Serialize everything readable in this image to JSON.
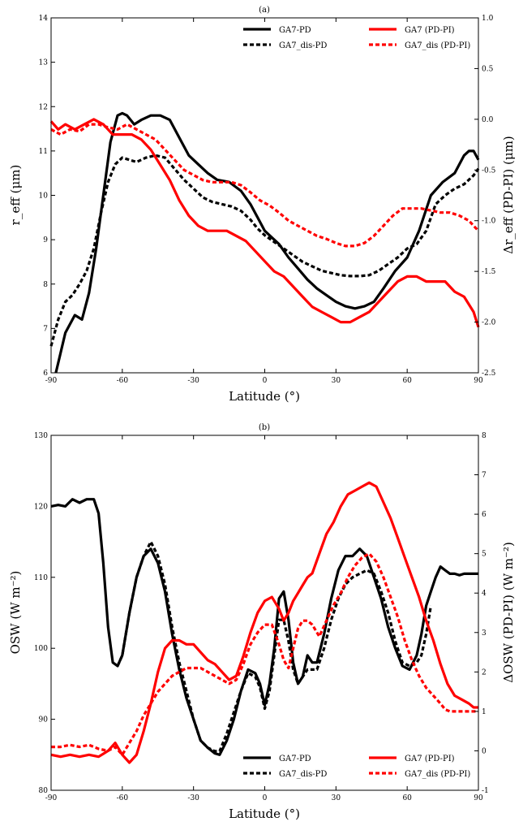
{
  "chart_data": [
    {
      "type": "line",
      "title": "(a)",
      "xlabel": "Latitude (°)",
      "ylabel_left": "r_eff (μm)",
      "ylabel_right": "Δr_eff (PD-PI) (μm)",
      "xlim": [
        -90,
        90
      ],
      "ylim_left": [
        6,
        14
      ],
      "ylim_right": [
        -2.5,
        1.0
      ],
      "x_ticks": [
        -90,
        -60,
        -30,
        0,
        30,
        60,
        90
      ],
      "y_ticks_left": [
        6,
        7,
        8,
        9,
        10,
        11,
        12,
        13,
        14
      ],
      "y_ticks_right": [
        -2.5,
        -2.0,
        -1.5,
        -1.0,
        -0.5,
        0.0,
        0.5,
        1.0
      ],
      "grid": false,
      "legend_placement": "top-right",
      "series": [
        {
          "name": "GA7-PD",
          "axis": "left",
          "color": "#000000",
          "style": "solid",
          "x": [
            -88,
            -84,
            -80,
            -77,
            -74,
            -71,
            -68,
            -65,
            -62,
            -60,
            -58,
            -55,
            -52,
            -48,
            -44,
            -40,
            -36,
            -32,
            -28,
            -24,
            -20,
            -15,
            -10,
            -6,
            -3,
            0,
            3,
            6,
            10,
            14,
            18,
            22,
            26,
            30,
            34,
            38,
            42,
            46,
            50,
            55,
            60,
            65,
            70,
            75,
            80,
            84,
            86,
            88,
            90
          ],
          "y": [
            6.0,
            6.9,
            7.3,
            7.2,
            7.8,
            8.8,
            10.0,
            11.2,
            11.8,
            11.85,
            11.8,
            11.6,
            11.7,
            11.8,
            11.8,
            11.7,
            11.3,
            10.9,
            10.7,
            10.5,
            10.35,
            10.3,
            10.1,
            9.8,
            9.5,
            9.2,
            9.05,
            8.9,
            8.6,
            8.35,
            8.1,
            7.9,
            7.75,
            7.6,
            7.5,
            7.45,
            7.5,
            7.6,
            7.9,
            8.3,
            8.6,
            9.2,
            10.0,
            10.3,
            10.5,
            10.9,
            11.0,
            11.0,
            10.8
          ]
        },
        {
          "name": "GA7_dis-PD",
          "axis": "left",
          "color": "#000000",
          "style": "dashed",
          "x": [
            -90,
            -87,
            -84,
            -81,
            -78,
            -75,
            -72,
            -69,
            -66,
            -63,
            -60,
            -57,
            -54,
            -50,
            -46,
            -42,
            -38,
            -34,
            -30,
            -26,
            -22,
            -18,
            -14,
            -10,
            -6,
            -3,
            0,
            4,
            8,
            12,
            16,
            20,
            24,
            28,
            32,
            36,
            40,
            44,
            48,
            52,
            56,
            60,
            64,
            68,
            72,
            76,
            80,
            84,
            88,
            90
          ],
          "y": [
            6.6,
            7.2,
            7.6,
            7.75,
            8.0,
            8.3,
            8.8,
            9.6,
            10.3,
            10.7,
            10.85,
            10.8,
            10.75,
            10.85,
            10.9,
            10.85,
            10.6,
            10.35,
            10.15,
            9.95,
            9.85,
            9.8,
            9.75,
            9.65,
            9.45,
            9.25,
            9.1,
            8.95,
            8.8,
            8.65,
            8.5,
            8.4,
            8.3,
            8.25,
            8.2,
            8.18,
            8.18,
            8.2,
            8.3,
            8.45,
            8.6,
            8.8,
            8.9,
            9.2,
            9.8,
            10.0,
            10.15,
            10.25,
            10.45,
            10.6
          ]
        },
        {
          "name": "GA7 (PD-PI)",
          "axis": "right",
          "color": "#ff0000",
          "style": "solid",
          "x": [
            -90,
            -87,
            -84,
            -80,
            -76,
            -72,
            -68,
            -64,
            -60,
            -56,
            -52,
            -48,
            -44,
            -40,
            -36,
            -32,
            -28,
            -24,
            -20,
            -16,
            -12,
            -8,
            -4,
            0,
            4,
            8,
            12,
            16,
            20,
            24,
            28,
            32,
            36,
            40,
            44,
            48,
            52,
            56,
            60,
            64,
            68,
            72,
            76,
            80,
            84,
            88,
            90
          ],
          "y": [
            -0.02,
            -0.1,
            -0.05,
            -0.1,
            -0.05,
            0.0,
            -0.05,
            -0.15,
            -0.15,
            -0.15,
            -0.2,
            -0.3,
            -0.45,
            -0.6,
            -0.8,
            -0.95,
            -1.05,
            -1.1,
            -1.1,
            -1.1,
            -1.15,
            -1.2,
            -1.3,
            -1.4,
            -1.5,
            -1.55,
            -1.65,
            -1.75,
            -1.85,
            -1.9,
            -1.95,
            -2.0,
            -2.0,
            -1.95,
            -1.9,
            -1.8,
            -1.7,
            -1.6,
            -1.55,
            -1.55,
            -1.6,
            -1.6,
            -1.6,
            -1.7,
            -1.75,
            -1.9,
            -2.05
          ]
        },
        {
          "name": "GA7_dis (PD-PI)",
          "axis": "right",
          "color": "#ff0000",
          "style": "dashed",
          "x": [
            -90,
            -86,
            -82,
            -78,
            -74,
            -70,
            -66,
            -62,
            -58,
            -54,
            -50,
            -46,
            -42,
            -38,
            -34,
            -30,
            -26,
            -22,
            -18,
            -14,
            -10,
            -6,
            -2,
            2,
            6,
            10,
            14,
            18,
            22,
            26,
            30,
            34,
            38,
            42,
            46,
            50,
            54,
            58,
            62,
            66,
            70,
            74,
            78,
            82,
            86,
            88,
            90
          ],
          "y": [
            -0.1,
            -0.15,
            -0.1,
            -0.12,
            -0.05,
            -0.05,
            -0.08,
            -0.1,
            -0.05,
            -0.1,
            -0.15,
            -0.2,
            -0.3,
            -0.4,
            -0.5,
            -0.55,
            -0.6,
            -0.62,
            -0.62,
            -0.62,
            -0.65,
            -0.72,
            -0.8,
            -0.85,
            -0.92,
            -1.0,
            -1.05,
            -1.1,
            -1.15,
            -1.18,
            -1.22,
            -1.25,
            -1.25,
            -1.22,
            -1.15,
            -1.05,
            -0.95,
            -0.88,
            -0.88,
            -0.88,
            -0.9,
            -0.92,
            -0.92,
            -0.95,
            -1.0,
            -1.05,
            -1.1
          ]
        }
      ]
    },
    {
      "type": "line",
      "title": "(b)",
      "xlabel": "Latitude (°)",
      "ylabel_left": "OSW (W m⁻²)",
      "ylabel_right": "ΔOSW (PD-PI) (W m⁻²)",
      "xlim": [
        -90,
        90
      ],
      "ylim_left": [
        80,
        130
      ],
      "ylim_right": [
        -1,
        8
      ],
      "x_ticks": [
        -90,
        -60,
        -30,
        0,
        30,
        60,
        90
      ],
      "y_ticks_left": [
        80,
        90,
        100,
        110,
        120,
        130
      ],
      "y_ticks_right": [
        -1,
        0,
        1,
        2,
        3,
        4,
        5,
        6,
        7,
        8
      ],
      "grid": false,
      "legend_placement": "bottom-right",
      "series": [
        {
          "name": "GA7-PD",
          "axis": "left",
          "color": "#000000",
          "style": "solid",
          "x": [
            -90,
            -87,
            -84,
            -81,
            -78,
            -75,
            -72,
            -70,
            -68,
            -66,
            -64,
            -62,
            -60,
            -57,
            -54,
            -51,
            -48,
            -45,
            -42,
            -39,
            -36,
            -33,
            -30,
            -27,
            -24,
            -21,
            -19,
            -16,
            -13,
            -10,
            -7,
            -4,
            -2,
            0,
            2,
            4,
            6,
            8,
            10,
            12,
            14,
            16,
            18,
            20,
            22,
            25,
            28,
            31,
            34,
            37,
            40,
            43,
            46,
            49,
            52,
            55,
            58,
            61,
            64,
            66,
            68,
            70,
            72,
            74,
            76,
            78,
            80,
            82,
            84,
            86,
            88,
            90
          ],
          "y": [
            120,
            120.2,
            120,
            121,
            120.5,
            121,
            121,
            119,
            112,
            103,
            98,
            97.5,
            99,
            105,
            110,
            113,
            114,
            112,
            108,
            102,
            97,
            93,
            90,
            87,
            86,
            85.2,
            85,
            87,
            90,
            94,
            97,
            96.5,
            95,
            92,
            95,
            100,
            107,
            108,
            104,
            98,
            95,
            96,
            99,
            98,
            98,
            102,
            107,
            111,
            113,
            113,
            114,
            113,
            110,
            107,
            103,
            100,
            97.5,
            97,
            99,
            102,
            106,
            108,
            110,
            111.5,
            111,
            110.5,
            110.5,
            110.3,
            110.5,
            110.5,
            110.5,
            110.5
          ]
        },
        {
          "name": "GA7_dis-PD",
          "axis": "left",
          "color": "#000000",
          "style": "dashed",
          "x": [
            -62,
            -60,
            -57,
            -54,
            -51,
            -48,
            -45,
            -42,
            -39,
            -36,
            -33,
            -30,
            -27,
            -24,
            -21,
            -19,
            -16,
            -13,
            -10,
            -7,
            -4,
            -2,
            0,
            2,
            4,
            6,
            8,
            10,
            12,
            14,
            16,
            18,
            20,
            22,
            25,
            28,
            31,
            34,
            37,
            40,
            43,
            46,
            49,
            52,
            55,
            58,
            61,
            64,
            66,
            68,
            70
          ],
          "y": [
            97.5,
            99,
            105,
            110,
            113,
            115,
            113,
            109,
            103,
            98,
            94,
            90,
            87,
            86,
            85.5,
            85.5,
            88,
            91,
            94,
            96.5,
            96,
            94.5,
            91.5,
            94,
            99,
            104,
            104,
            101,
            97,
            95,
            96,
            97,
            97,
            97,
            100,
            104,
            107,
            109,
            110,
            110.5,
            111,
            110.5,
            108,
            105,
            101,
            98,
            97.5,
            98,
            99,
            102,
            106
          ]
        },
        {
          "name": "GA7 (PD-PI)",
          "axis": "right",
          "color": "#ff0000",
          "style": "solid",
          "x": [
            -90,
            -86,
            -82,
            -78,
            -74,
            -70,
            -66,
            -63,
            -60,
            -57,
            -54,
            -51,
            -48,
            -45,
            -42,
            -39,
            -36,
            -33,
            -30,
            -27,
            -24,
            -21,
            -18,
            -15,
            -12,
            -9,
            -6,
            -3,
            0,
            3,
            6,
            8,
            10,
            12,
            14,
            16,
            18,
            20,
            23,
            26,
            29,
            32,
            35,
            38,
            41,
            44,
            47,
            50,
            53,
            56,
            59,
            62,
            65,
            68,
            71,
            74,
            77,
            80,
            83,
            86,
            88,
            90
          ],
          "y": [
            -0.1,
            -0.15,
            -0.1,
            -0.15,
            -0.1,
            -0.15,
            0.0,
            0.2,
            -0.1,
            -0.3,
            -0.1,
            0.5,
            1.2,
            2.0,
            2.6,
            2.8,
            2.8,
            2.7,
            2.7,
            2.5,
            2.3,
            2.2,
            2.0,
            1.8,
            1.9,
            2.4,
            3.0,
            3.5,
            3.8,
            3.9,
            3.6,
            3.3,
            3.5,
            3.8,
            4.0,
            4.2,
            4.4,
            4.5,
            5.0,
            5.5,
            5.8,
            6.2,
            6.5,
            6.6,
            6.7,
            6.8,
            6.7,
            6.3,
            5.9,
            5.4,
            4.9,
            4.4,
            3.9,
            3.3,
            2.8,
            2.2,
            1.7,
            1.4,
            1.3,
            1.2,
            1.1,
            1.1
          ]
        },
        {
          "name": "GA7_dis (PD-PI)",
          "axis": "right",
          "color": "#ff0000",
          "style": "dashed",
          "x": [
            -90,
            -86,
            -82,
            -78,
            -74,
            -70,
            -66,
            -63,
            -60,
            -57,
            -54,
            -51,
            -48,
            -45,
            -42,
            -39,
            -36,
            -33,
            -30,
            -27,
            -24,
            -21,
            -18,
            -15,
            -12,
            -9,
            -6,
            -3,
            0,
            3,
            6,
            8,
            10,
            12,
            14,
            16,
            18,
            20,
            23,
            26,
            29,
            32,
            35,
            38,
            41,
            44,
            47,
            50,
            53,
            56,
            59,
            62,
            65,
            68,
            71,
            74,
            76,
            78,
            80,
            83,
            86,
            88,
            90
          ],
          "y": [
            0.1,
            0.1,
            0.15,
            0.1,
            0.15,
            0.05,
            0.0,
            0.1,
            -0.1,
            0.2,
            0.5,
            0.9,
            1.2,
            1.5,
            1.7,
            1.9,
            2.0,
            2.1,
            2.1,
            2.1,
            2.0,
            1.9,
            1.8,
            1.7,
            1.8,
            2.2,
            2.7,
            3.0,
            3.2,
            3.2,
            2.7,
            2.3,
            2.1,
            2.6,
            3.1,
            3.3,
            3.3,
            3.2,
            2.9,
            3.3,
            3.7,
            4.0,
            4.4,
            4.7,
            4.9,
            5.0,
            4.8,
            4.4,
            3.9,
            3.4,
            2.8,
            2.3,
            1.9,
            1.6,
            1.4,
            1.2,
            1.05,
            1.0,
            1.0,
            1.0,
            1.0,
            1.0,
            1.0
          ]
        }
      ]
    }
  ]
}
